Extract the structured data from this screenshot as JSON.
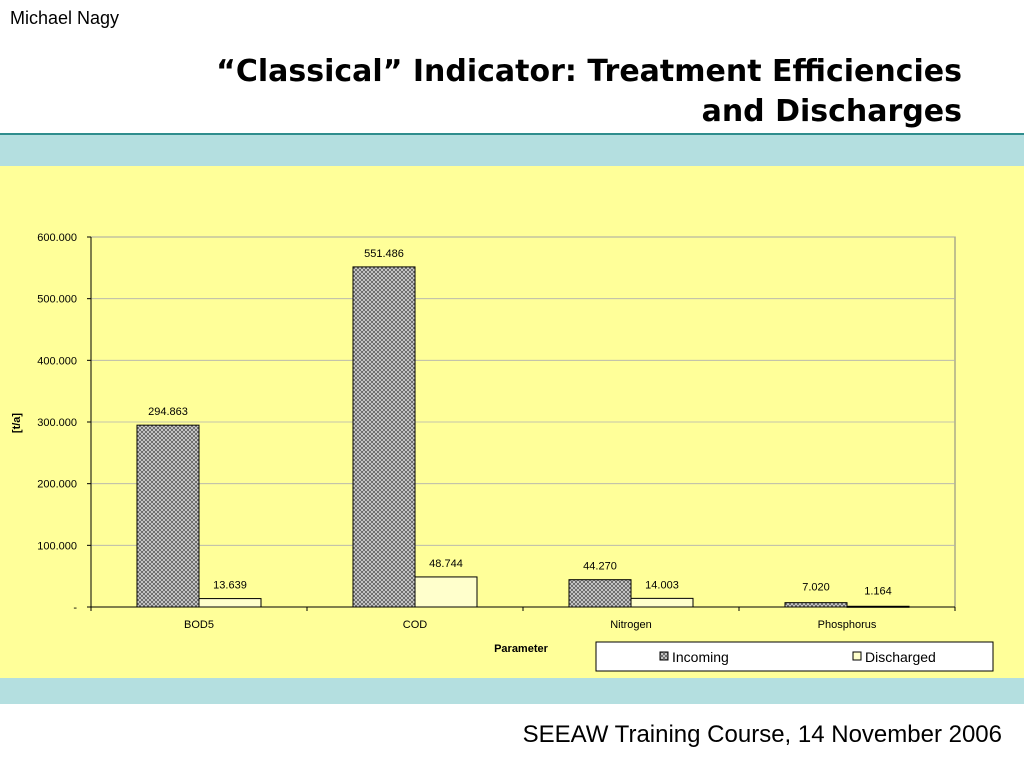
{
  "header": {
    "author": "Michael Nagy",
    "title_line1": "“Classical” Indicator: Treatment Efficiencies",
    "title_line2": "and Discharges"
  },
  "footer": {
    "text": "SEEAW Training Course, 14 November 2006"
  },
  "colors": {
    "band": "#b4dfe0",
    "chart_background": "#ffff99",
    "incoming_fill": "#9a9a9a",
    "discharged_fill": "#ffffcc"
  },
  "chart_data": {
    "type": "bar",
    "categories": [
      "BOD5",
      "COD",
      "Nitrogen",
      "Phosphorus"
    ],
    "series": [
      {
        "name": "Incoming",
        "values": [
          294.863,
          551.486,
          44.27,
          7.02
        ],
        "labels": [
          "294.863",
          "551.486",
          "44.270",
          "7.020"
        ]
      },
      {
        "name": "Discharged",
        "values": [
          13.639,
          48.744,
          14.003,
          1.164
        ],
        "labels": [
          "13.639",
          "48.744",
          "14.003",
          "1.164"
        ]
      }
    ],
    "yticks": [
      "-",
      "100.000",
      "200.000",
      "300.000",
      "400.000",
      "500.000",
      "600.000"
    ],
    "ytick_values": [
      0,
      100,
      200,
      300,
      400,
      500,
      600
    ],
    "xlabel": "Parameter",
    "ylabel": "[t/a]",
    "ylim": [
      0,
      600
    ],
    "grid": true,
    "legend_position": "bottom"
  }
}
